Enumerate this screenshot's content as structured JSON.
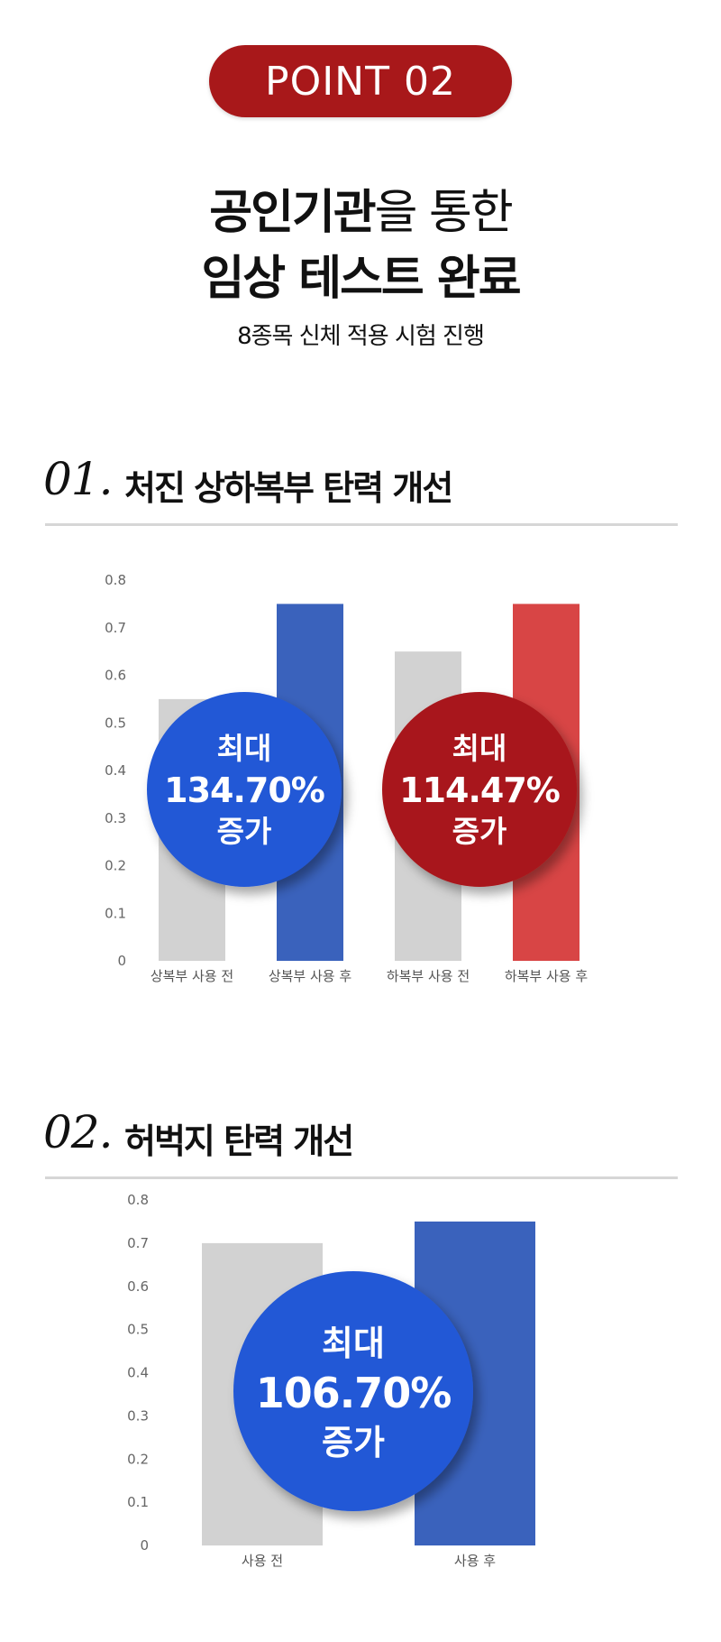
{
  "badge": "POINT   02",
  "headline": {
    "line1_bold": "공인기관",
    "line1_normal": "을 통한",
    "line2": "임상 테스트 완료",
    "sub": "8종목 신체 적용 시험 진행"
  },
  "sections": [
    {
      "num": "01.",
      "title": "처진 상하복부 탄력 개선"
    },
    {
      "num": "02.",
      "title": "허벅지 탄력 개선"
    }
  ],
  "colors": {
    "gray_bar": "#d2d2d2",
    "blue_bar": "#3a62bc",
    "red_bar": "#d84545",
    "blue_circle": "#2458d6",
    "red_circle": "#a8181a"
  },
  "chart_data": [
    {
      "type": "bar",
      "categories": [
        "상복부 사용 전",
        "상복부 사용 후",
        "하복부 사용 전",
        "하복부 사용 후"
      ],
      "values": [
        0.55,
        0.75,
        0.65,
        0.75
      ],
      "ylim": [
        0,
        0.8
      ],
      "yticks": [
        "0",
        "0.1",
        "0.2",
        "0.3",
        "0.4",
        "0.5",
        "0.6",
        "0.7",
        "0.8"
      ],
      "annotations": [
        {
          "line1": "최대",
          "line2": "134.70%",
          "line3": "증가"
        },
        {
          "line1": "최대",
          "line2": "114.47%",
          "line3": "증가"
        }
      ]
    },
    {
      "type": "bar",
      "categories": [
        "사용 전",
        "사용 후"
      ],
      "values": [
        0.7,
        0.75
      ],
      "ylim": [
        0,
        0.8
      ],
      "yticks": [
        "0",
        "0.1",
        "0.2",
        "0.3",
        "0.4",
        "0.5",
        "0.6",
        "0.7",
        "0.8"
      ],
      "annotations": [
        {
          "line1": "최대",
          "line2": "106.70%",
          "line3": "증가"
        }
      ]
    }
  ]
}
